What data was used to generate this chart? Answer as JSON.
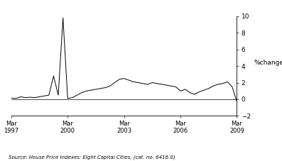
{
  "ylabel": "%change",
  "ylim": [
    -2,
    10
  ],
  "yticks": [
    -2,
    0,
    2,
    4,
    6,
    8,
    10
  ],
  "source_text": "Source: House Price Indexes: Eight Capital Cities, (cat. no. 6416.0)",
  "line_color": "#000000",
  "line_width": 0.7,
  "background_color": "#ffffff",
  "x_tick_labels": [
    "Mar\n1997",
    "Mar\n2000",
    "Mar\n2003",
    "Mar\n2006",
    "Mar\n2009"
  ],
  "x_tick_positions": [
    0,
    12,
    24,
    36,
    48
  ],
  "quarters": [
    0,
    1,
    2,
    3,
    4,
    5,
    6,
    7,
    8,
    9,
    10,
    11,
    12,
    13,
    14,
    15,
    16,
    17,
    18,
    19,
    20,
    21,
    22,
    23,
    24,
    25,
    26,
    27,
    28,
    29,
    30,
    31,
    32,
    33,
    34,
    35,
    36,
    37,
    38,
    39,
    40,
    41,
    42,
    43,
    44,
    45,
    46,
    47,
    48
  ],
  "values": [
    0.15,
    0.1,
    0.3,
    0.2,
    0.25,
    0.2,
    0.3,
    0.4,
    0.5,
    2.8,
    0.5,
    9.8,
    0.1,
    0.2,
    0.5,
    0.8,
    1.0,
    1.1,
    1.2,
    1.3,
    1.4,
    1.6,
    2.0,
    2.4,
    2.5,
    2.3,
    2.1,
    2.0,
    1.9,
    1.8,
    2.0,
    1.9,
    1.8,
    1.7,
    1.6,
    1.5,
    1.0,
    1.2,
    0.8,
    0.6,
    0.9,
    1.1,
    1.3,
    1.6,
    1.8,
    1.9,
    2.1,
    1.5,
    -0.3
  ]
}
